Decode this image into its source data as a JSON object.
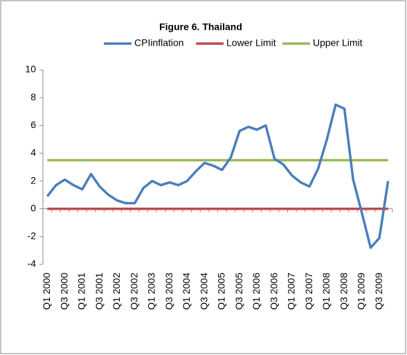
{
  "chart_data": {
    "type": "line",
    "title": "Figure 6. Thailand",
    "categories": [
      "Q1 2000",
      null,
      "Q3 2000",
      null,
      "Q1 2001",
      null,
      "Q3 2001",
      null,
      "Q1 2002",
      null,
      "Q3 2002",
      null,
      "Q1 2003",
      null,
      "Q3 2003",
      null,
      "Q1 2004",
      null,
      "Q3 2004",
      null,
      "Q1 2005",
      null,
      "Q3 2005",
      null,
      "Q1 2006",
      null,
      "Q3 2006",
      null,
      "Q1 2007",
      null,
      "Q3 2007",
      null,
      "Q1 2008",
      null,
      "Q3 2008",
      null,
      "Q1 2009",
      null,
      "Q3 2009",
      null
    ],
    "series": [
      {
        "name": "CPIinflation",
        "color": "#4a7ebb",
        "values": [
          0.9,
          1.7,
          2.1,
          1.7,
          1.4,
          2.5,
          1.6,
          1.0,
          0.6,
          0.4,
          0.4,
          1.5,
          2.0,
          1.7,
          1.9,
          1.7,
          2.0,
          2.7,
          3.3,
          3.1,
          2.8,
          3.7,
          5.6,
          5.9,
          5.7,
          6.0,
          3.6,
          3.2,
          2.4,
          1.9,
          1.6,
          2.9,
          5.0,
          7.5,
          7.2,
          2.1,
          -0.3,
          -2.8,
          -2.1,
          2.0
        ]
      },
      {
        "name": "Lower Limit",
        "color": "#be4b48",
        "values": [
          0,
          0,
          0,
          0,
          0,
          0,
          0,
          0,
          0,
          0,
          0,
          0,
          0,
          0,
          0,
          0,
          0,
          0,
          0,
          0,
          0,
          0,
          0,
          0,
          0,
          0,
          0,
          0,
          0,
          0,
          0,
          0,
          0,
          0,
          0,
          0,
          0,
          0,
          0,
          0
        ]
      },
      {
        "name": "Upper Limit",
        "color": "#98b954",
        "values": [
          3.5,
          3.5,
          3.5,
          3.5,
          3.5,
          3.5,
          3.5,
          3.5,
          3.5,
          3.5,
          3.5,
          3.5,
          3.5,
          3.5,
          3.5,
          3.5,
          3.5,
          3.5,
          3.5,
          3.5,
          3.5,
          3.5,
          3.5,
          3.5,
          3.5,
          3.5,
          3.5,
          3.5,
          3.5,
          3.5,
          3.5,
          3.5,
          3.5,
          3.5,
          3.5,
          3.5,
          3.5,
          3.5,
          3.5,
          3.5
        ]
      }
    ],
    "ylim": [
      -4,
      10
    ],
    "yticks": [
      -4,
      -2,
      0,
      2,
      4,
      6,
      8,
      10
    ],
    "grid": false,
    "legend": "top"
  }
}
